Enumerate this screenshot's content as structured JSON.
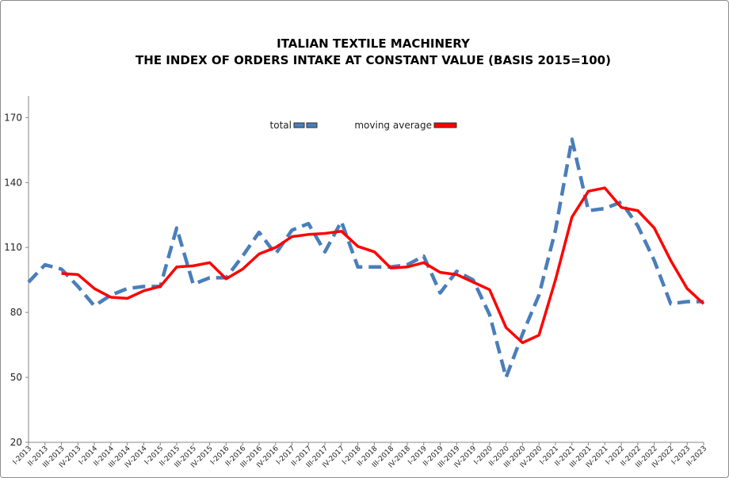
{
  "chart_data": {
    "type": "line",
    "title": "ITALIAN TEXTILE MACHINERY",
    "subtitle": "THE INDEX OF ORDERS INTAKE AT CONSTANT VALUE (BASIS 2015=100)",
    "categories": [
      "I-2013",
      "II-2013",
      "III-2013",
      "IV-2013",
      "I-2014",
      "II-2014",
      "III-2014",
      "IV-2014",
      "I-2015",
      "II-2015",
      "III-2015",
      "IV-2015",
      "I-2016",
      "II-2016",
      "III-2016",
      "IV-2016",
      "I-2017",
      "II-2017",
      "III-2017",
      "IV-2017",
      "I-2018",
      "II-2018",
      "III-2018",
      "IV-2018",
      "I-2019",
      "II-2019",
      "III-2019",
      "IV-2019",
      "I-2020",
      "II-2020",
      "III-2020",
      "IV-2020",
      "I-2021",
      "II-2021",
      "III-2021",
      "IV-2021",
      "I-2022",
      "II-2022",
      "III-2022",
      "IV-2022",
      "I-2023",
      "II-2023"
    ],
    "series": [
      {
        "name": "total",
        "color": "#4a7ebb",
        "dashed": true,
        "values": [
          94,
          102,
          100,
          92,
          83,
          88,
          91,
          92,
          92,
          119,
          93,
          96,
          96,
          106,
          117,
          107,
          118,
          121,
          108,
          122,
          101,
          101,
          101,
          102,
          106,
          89,
          99,
          95,
          79,
          50,
          70,
          88,
          118,
          160,
          127,
          128,
          131,
          120,
          104,
          84,
          85,
          85
        ]
      },
      {
        "name": "moving average",
        "color": "#ff0000",
        "dashed": false,
        "values": [
          null,
          null,
          98,
          97.5,
          91,
          87,
          86.5,
          90,
          92,
          101,
          101.5,
          103,
          95.5,
          100,
          107,
          110,
          115,
          116,
          116.5,
          117.5,
          110.5,
          108,
          100.5,
          101,
          103,
          98.5,
          97.5,
          94,
          90.5,
          73,
          66,
          69.5,
          95,
          124,
          136,
          137.5,
          128.5,
          127,
          119,
          104,
          91,
          84
        ]
      }
    ],
    "ylim": [
      20,
      180
    ],
    "yticks": [
      20,
      50,
      80,
      110,
      140,
      170
    ],
    "grid": false
  }
}
